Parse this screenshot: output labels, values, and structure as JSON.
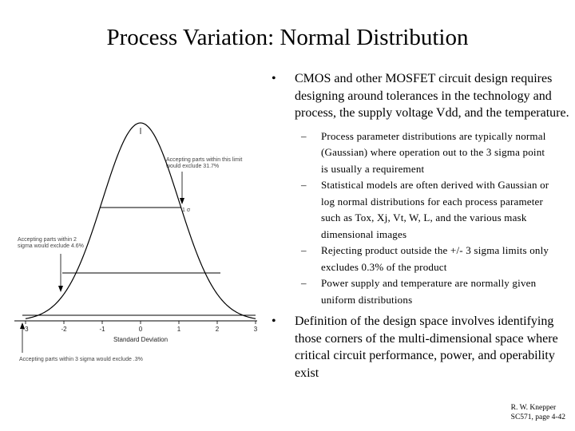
{
  "slide": {
    "title": "Process Variation:  Normal Distribution",
    "bullets": [
      {
        "mark": "•",
        "text": "CMOS and  other MOSFET circuit design requires designing around tolerances in the technology and process, the supply voltage Vdd, and the temperature.",
        "subitems": [
          "Process parameter distributions are typically normal (Gaussian) where operation out to the 3 sigma point is usually a requirement",
          "Statistical models are often derived with Gaussian or log normal distributions for each process parameter such as Tox, Xj, Vt, W, L, and the various mask dimensional images",
          "Rejecting product outside the +/- 3 sigma limits only excludes 0.3% of the product",
          "Power supply and temperature are normally given uniform distributions"
        ]
      },
      {
        "mark": "•",
        "text": "Definition of the design space involves identifying those corners of the multi-dimensional space where critical circuit performance, power, and operability exist",
        "subitems": []
      }
    ],
    "sub_dash": "–",
    "credit": {
      "author": "R. W. Knepper",
      "course": "SC571, page 4-42"
    }
  },
  "figure": {
    "chart_data": {
      "type": "line",
      "series": [
        {
          "name": "normal density",
          "function": "exp(-x^2/2)"
        }
      ],
      "xlabel": "Standard Deviation",
      "xlim": [
        -3,
        3
      ],
      "ticks": [
        "-3",
        "-2",
        "-1",
        "0",
        "1",
        "2",
        "3"
      ],
      "annotations": [
        "Accepting parts within this limit would exclude 31.7%",
        "1 σ",
        "Accepting parts within 2 sigma would exclude 4.6%",
        "Accepting parts within 3 sigma would exclude .3%"
      ]
    }
  }
}
